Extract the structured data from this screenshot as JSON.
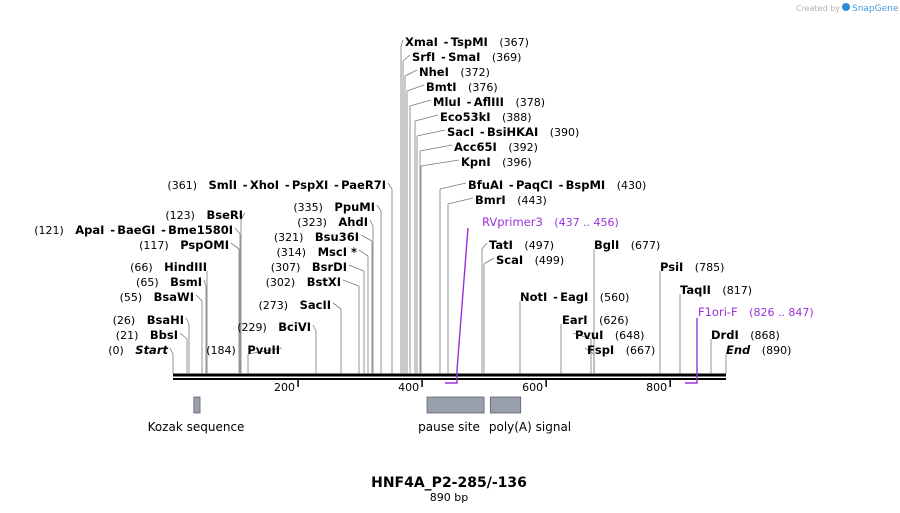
{
  "credit": {
    "prefix": "Created by",
    "brand": "SnapGene"
  },
  "sequence": {
    "name": "HNF4A_P2-285/-136",
    "length_label": "890 bp",
    "length": 890
  },
  "axis": {
    "ticks": [
      "200",
      "400",
      "600",
      "800"
    ]
  },
  "enzymes": [
    {
      "names": [
        "Start"
      ],
      "pos": "(0)",
      "bp": 0,
      "italic": true,
      "side": "left"
    },
    {
      "names": [
        "BbsI"
      ],
      "pos": "(21)",
      "bp": 21,
      "side": "left"
    },
    {
      "names": [
        "BsaHI"
      ],
      "pos": "(26)",
      "bp": 26,
      "side": "left"
    },
    {
      "names": [
        "BsaWI"
      ],
      "pos": "(55)",
      "bp": 55,
      "side": "left"
    },
    {
      "names": [
        "BsmI"
      ],
      "pos": "(65)",
      "bp": 65,
      "side": "left"
    },
    {
      "names": [
        "HindIII"
      ],
      "pos": "(66)",
      "bp": 66,
      "side": "left"
    },
    {
      "names": [
        "PspOMI"
      ],
      "pos": "(117)",
      "bp": 117,
      "side": "left"
    },
    {
      "names": [
        "ApaI",
        "BaeGI",
        "Bme1580I"
      ],
      "pos": "(121)",
      "bp": 121,
      "side": "left"
    },
    {
      "names": [
        "BseRI"
      ],
      "pos": "(123)",
      "bp": 123,
      "side": "left"
    },
    {
      "names": [
        "PvuII"
      ],
      "pos": "(184)",
      "bp": 184,
      "side": "left"
    },
    {
      "names": [
        "BciVI"
      ],
      "pos": "(229)",
      "bp": 229,
      "side": "left"
    },
    {
      "names": [
        "SacII"
      ],
      "pos": "(273)",
      "bp": 273,
      "side": "left"
    },
    {
      "names": [
        "BstXI"
      ],
      "pos": "(302)",
      "bp": 302,
      "side": "left"
    },
    {
      "names": [
        "BsrDI"
      ],
      "pos": "(307)",
      "bp": 307,
      "side": "left"
    },
    {
      "names": [
        "MscI *"
      ],
      "pos": "(314)",
      "bp": 314,
      "side": "left"
    },
    {
      "names": [
        "Bsu36I"
      ],
      "pos": "(321)",
      "bp": 321,
      "side": "left"
    },
    {
      "names": [
        "AhdI"
      ],
      "pos": "(323)",
      "bp": 323,
      "side": "left"
    },
    {
      "names": [
        "PpuMI"
      ],
      "pos": "(335)",
      "bp": 335,
      "side": "left"
    },
    {
      "names": [
        "SmlI",
        "XhoI",
        "PspXI",
        "PaeR7I"
      ],
      "pos": "(361)",
      "bp": 361,
      "side": "left"
    },
    {
      "names": [
        "XmaI",
        "TspMI"
      ],
      "pos": "(367)",
      "bp": 367,
      "side": "right"
    },
    {
      "names": [
        "SrfI",
        "SmaI"
      ],
      "pos": "(369)",
      "bp": 369,
      "side": "right"
    },
    {
      "names": [
        "NheI"
      ],
      "pos": "(372)",
      "bp": 372,
      "side": "right"
    },
    {
      "names": [
        "BmtI"
      ],
      "pos": "(376)",
      "bp": 376,
      "side": "right"
    },
    {
      "names": [
        "MluI",
        "AflIII"
      ],
      "pos": "(378)",
      "bp": 378,
      "side": "right"
    },
    {
      "names": [
        "Eco53kI"
      ],
      "pos": "(388)",
      "bp": 388,
      "side": "right"
    },
    {
      "names": [
        "SacI",
        "BsiHKAI"
      ],
      "pos": "(390)",
      "bp": 390,
      "side": "right"
    },
    {
      "names": [
        "Acc65I"
      ],
      "pos": "(392)",
      "bp": 392,
      "side": "right"
    },
    {
      "names": [
        "KpnI"
      ],
      "pos": "(396)",
      "bp": 396,
      "side": "right"
    },
    {
      "names": [
        "BfuAI",
        "PaqCI",
        "BspMI"
      ],
      "pos": "(430)",
      "bp": 430,
      "side": "right"
    },
    {
      "names": [
        "BmrI"
      ],
      "pos": "(443)",
      "bp": 443,
      "side": "right"
    },
    {
      "names": [
        "TatI"
      ],
      "pos": "(497)",
      "bp": 497,
      "side": "right"
    },
    {
      "names": [
        "ScaI"
      ],
      "pos": "(499)",
      "bp": 499,
      "side": "right"
    },
    {
      "names": [
        "NotI",
        "EagI"
      ],
      "pos": "(560)",
      "bp": 560,
      "side": "right"
    },
    {
      "names": [
        "EarI"
      ],
      "pos": "(626)",
      "bp": 626,
      "side": "right"
    },
    {
      "names": [
        "PvuI"
      ],
      "pos": "(648)",
      "bp": 648,
      "side": "right"
    },
    {
      "names": [
        "FspI"
      ],
      "pos": "(667)",
      "bp": 667,
      "side": "right"
    },
    {
      "names": [
        "BglI"
      ],
      "pos": "(677)",
      "bp": 677,
      "side": "right"
    },
    {
      "names": [
        "PsiI"
      ],
      "pos": "(785)",
      "bp": 785,
      "side": "right"
    },
    {
      "names": [
        "TaqII"
      ],
      "pos": "(817)",
      "bp": 817,
      "side": "right"
    },
    {
      "names": [
        "DrdI"
      ],
      "pos": "(868)",
      "bp": 868,
      "side": "right"
    },
    {
      "names": [
        "End"
      ],
      "pos": "(890)",
      "bp": 890,
      "italic": true,
      "side": "right"
    }
  ],
  "primers": [
    {
      "name": "RVprimer3",
      "range": "(437 .. 456)",
      "start": 437,
      "end": 456,
      "color": "#9b30d9"
    },
    {
      "name": "F1ori-F",
      "range": "(826 .. 847)",
      "start": 826,
      "end": 847,
      "color": "#9b30d9"
    }
  ],
  "features": [
    {
      "label": "Kozak sequence",
      "start": 32,
      "end": 42,
      "color": "#9aa0ab"
    },
    {
      "label": "pause site",
      "start": 408,
      "end": 500,
      "color": "#9aa0ab"
    },
    {
      "label": "poly(A) signal",
      "start": 510,
      "end": 559,
      "color": "#9aa0ab"
    }
  ]
}
